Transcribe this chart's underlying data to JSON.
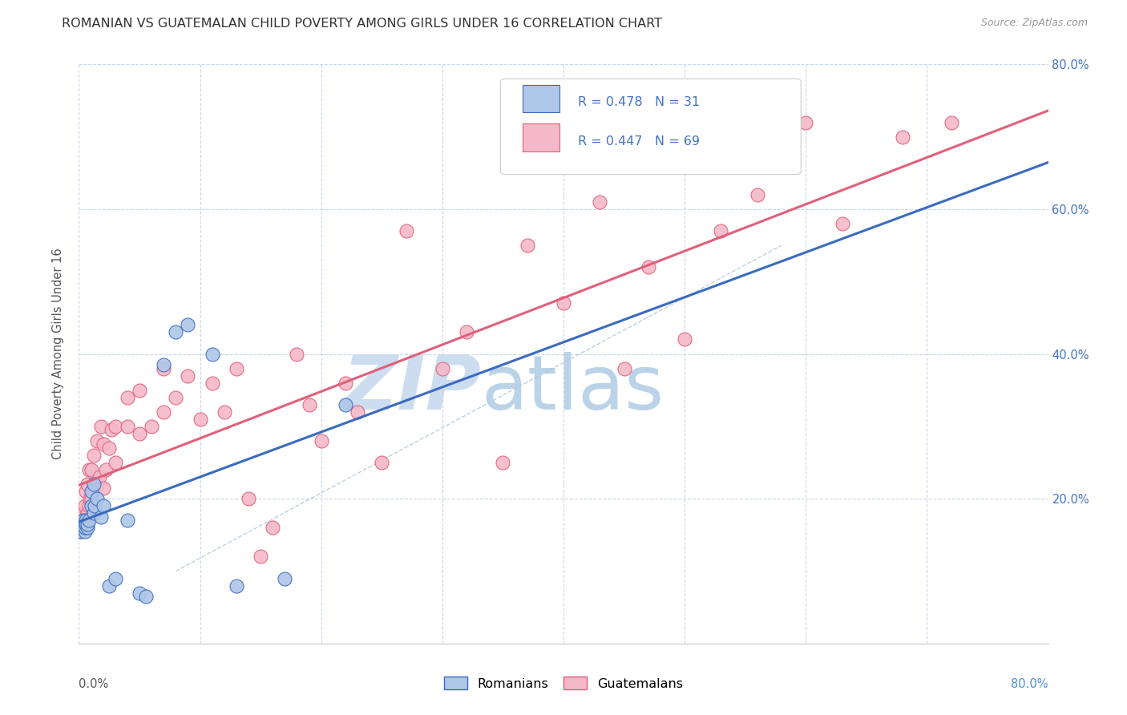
{
  "title": "ROMANIAN VS GUATEMALAN CHILD POVERTY AMONG GIRLS UNDER 16 CORRELATION CHART",
  "source": "Source: ZipAtlas.com",
  "ylabel": "Child Poverty Among Girls Under 16",
  "xlim": [
    0.0,
    0.8
  ],
  "ylim": [
    0.0,
    0.8
  ],
  "romanian_color": "#aec6e8",
  "guatemalan_color": "#f5b8c8",
  "romanian_line_color": "#3a6bbf",
  "guatemalan_line_color": "#e0607a",
  "diagonal_color": "#b0c8dc",
  "watermark_zip": "ZIP",
  "watermark_atlas": "atlas",
  "romanians_label": "Romanians",
  "guatemalans_label": "Guatemalans",
  "legend_text_color": "#4472c4",
  "right_tick_color": "#4472c4",
  "romanian_R": 0.478,
  "romanian_N": 31,
  "guatemalan_R": 0.447,
  "guatemalan_N": 69,
  "romanians_x": [
    0.002,
    0.003,
    0.004,
    0.004,
    0.005,
    0.005,
    0.006,
    0.006,
    0.007,
    0.007,
    0.008,
    0.01,
    0.01,
    0.012,
    0.012,
    0.013,
    0.015,
    0.018,
    0.02,
    0.025,
    0.03,
    0.04,
    0.05,
    0.055,
    0.07,
    0.08,
    0.09,
    0.11,
    0.13,
    0.17,
    0.22
  ],
  "romanians_y": [
    0.155,
    0.16,
    0.16,
    0.17,
    0.155,
    0.16,
    0.17,
    0.165,
    0.16,
    0.165,
    0.17,
    0.19,
    0.21,
    0.22,
    0.18,
    0.19,
    0.2,
    0.175,
    0.19,
    0.08,
    0.09,
    0.17,
    0.07,
    0.065,
    0.385,
    0.43,
    0.44,
    0.4,
    0.08,
    0.09,
    0.33
  ],
  "guatemalans_x": [
    0.001,
    0.002,
    0.002,
    0.003,
    0.003,
    0.004,
    0.004,
    0.005,
    0.005,
    0.006,
    0.006,
    0.007,
    0.007,
    0.008,
    0.008,
    0.009,
    0.01,
    0.01,
    0.012,
    0.012,
    0.015,
    0.015,
    0.017,
    0.018,
    0.02,
    0.02,
    0.022,
    0.025,
    0.027,
    0.03,
    0.03,
    0.04,
    0.04,
    0.05,
    0.05,
    0.06,
    0.07,
    0.07,
    0.08,
    0.09,
    0.1,
    0.11,
    0.12,
    0.13,
    0.14,
    0.15,
    0.16,
    0.18,
    0.19,
    0.2,
    0.22,
    0.23,
    0.25,
    0.27,
    0.3,
    0.32,
    0.35,
    0.37,
    0.4,
    0.43,
    0.45,
    0.47,
    0.5,
    0.53,
    0.56,
    0.6,
    0.63,
    0.68,
    0.72
  ],
  "guatemalans_y": [
    0.155,
    0.16,
    0.17,
    0.16,
    0.175,
    0.165,
    0.18,
    0.17,
    0.19,
    0.175,
    0.21,
    0.18,
    0.22,
    0.19,
    0.24,
    0.2,
    0.2,
    0.24,
    0.215,
    0.26,
    0.22,
    0.28,
    0.23,
    0.3,
    0.215,
    0.275,
    0.24,
    0.27,
    0.295,
    0.25,
    0.3,
    0.3,
    0.34,
    0.29,
    0.35,
    0.3,
    0.32,
    0.38,
    0.34,
    0.37,
    0.31,
    0.36,
    0.32,
    0.38,
    0.2,
    0.12,
    0.16,
    0.4,
    0.33,
    0.28,
    0.36,
    0.32,
    0.25,
    0.57,
    0.38,
    0.43,
    0.25,
    0.55,
    0.47,
    0.61,
    0.38,
    0.52,
    0.42,
    0.57,
    0.62,
    0.72,
    0.58,
    0.7,
    0.72
  ]
}
